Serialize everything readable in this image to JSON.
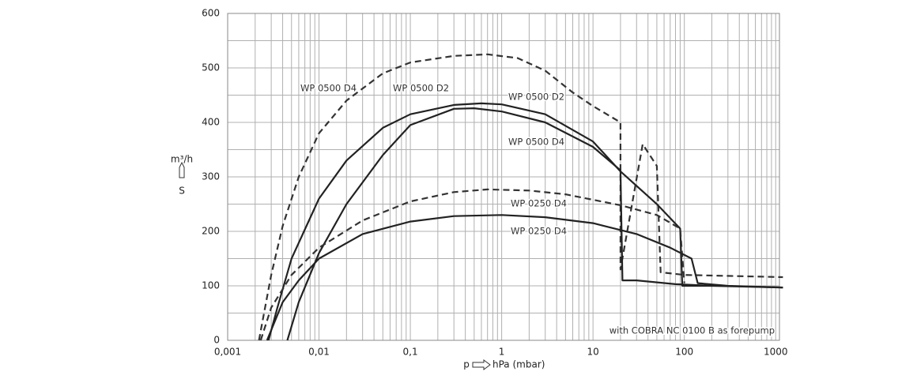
{
  "chart_data": {
    "type": "line",
    "y_label": "m³/h",
    "y_symbol": "S",
    "x_symbol": "p",
    "x_label": "hPa (mbar)",
    "note": "with COBRA NC 0100 B as forepump",
    "annotations": [
      "WP 0500 D4",
      "WP 0500 D2",
      "WP 0500 D2",
      "WP 0500 D4",
      "WP 0250 D4",
      "WP 0250 D4"
    ],
    "xscale": "log",
    "grid": true,
    "minor_grid": true,
    "xlim": [
      0.001,
      1100
    ],
    "ylim": [
      0,
      600
    ],
    "xticks": [
      {
        "value": 0.001,
        "label": "0,001"
      },
      {
        "value": 0.01,
        "label": "0,01"
      },
      {
        "value": 0.1,
        "label": "0,1"
      },
      1,
      10,
      100,
      1000
    ],
    "yticks": [
      0,
      100,
      200,
      300,
      400,
      500,
      600
    ],
    "series": [
      {
        "color": "#333333",
        "dashed": true,
        "x": [
          0.0022,
          0.0025,
          0.003,
          0.004,
          0.006,
          0.01,
          0.02,
          0.05,
          0.1,
          0.3,
          0.7,
          1.5,
          3,
          6,
          10,
          20,
          20,
          35,
          50,
          55,
          100,
          1200
        ],
        "values": [
          0,
          50,
          120,
          210,
          300,
          380,
          440,
          490,
          510,
          522,
          525,
          518,
          495,
          455,
          430,
          400,
          130,
          360,
          320,
          125,
          120,
          116
        ]
      },
      {
        "color": "#222222",
        "dashed": false,
        "x": [
          0.0028,
          0.0035,
          0.005,
          0.01,
          0.02,
          0.05,
          0.1,
          0.3,
          0.6,
          1,
          3,
          10,
          20,
          50,
          90,
          95,
          200,
          1200
        ],
        "values": [
          0,
          60,
          150,
          260,
          330,
          390,
          415,
          432,
          435,
          433,
          415,
          365,
          310,
          250,
          205,
          100,
          100,
          97
        ]
      },
      {
        "color": "#222222",
        "dashed": false,
        "x": [
          0.0045,
          0.006,
          0.01,
          0.02,
          0.05,
          0.1,
          0.3,
          0.5,
          1,
          3,
          10,
          20,
          21,
          30,
          80,
          200
        ],
        "values": [
          0,
          70,
          160,
          250,
          340,
          395,
          425,
          426,
          420,
          400,
          355,
          312,
          110,
          110,
          103,
          100
        ]
      },
      {
        "color": "#333333",
        "dashed": true,
        "x": [
          0.0023,
          0.003,
          0.005,
          0.01,
          0.03,
          0.1,
          0.3,
          0.7,
          2,
          5,
          10,
          20,
          50,
          90,
          100
        ],
        "values": [
          0,
          60,
          120,
          170,
          220,
          255,
          272,
          277,
          275,
          268,
          258,
          248,
          230,
          205,
          105
        ]
      },
      {
        "color": "#222222",
        "dashed": false,
        "x": [
          0.0027,
          0.004,
          0.006,
          0.01,
          0.03,
          0.1,
          0.3,
          1,
          3,
          10,
          30,
          70,
          120,
          140,
          300,
          1200
        ],
        "values": [
          0,
          70,
          110,
          150,
          195,
          218,
          228,
          230,
          226,
          215,
          195,
          170,
          150,
          105,
          100,
          97
        ]
      }
    ]
  }
}
